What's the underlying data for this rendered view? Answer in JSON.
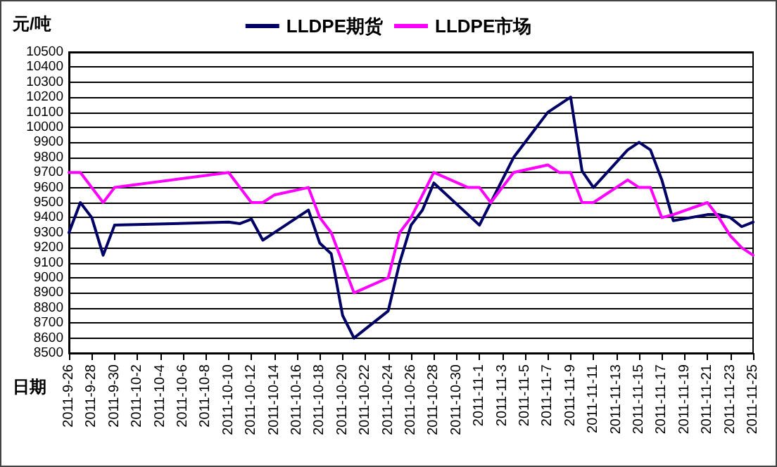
{
  "chart_data": {
    "type": "line",
    "ylabel": "元/吨",
    "xlabel": "日期",
    "x": [
      "2011-09-26",
      "2011-09-27",
      "2011-09-28",
      "2011-09-29",
      "2011-09-30",
      "2011-10-10",
      "2011-10-11",
      "2011-10-12",
      "2011-10-13",
      "2011-10-14",
      "2011-10-17",
      "2011-10-18",
      "2011-10-19",
      "2011-10-20",
      "2011-10-21",
      "2011-10-24",
      "2011-10-25",
      "2011-10-26",
      "2011-10-27",
      "2011-10-28",
      "2011-10-31",
      "2011-11-01",
      "2011-11-02",
      "2011-11-03",
      "2011-11-04",
      "2011-11-07",
      "2011-11-08",
      "2011-11-09",
      "2011-11-10",
      "2011-11-11",
      "2011-11-14",
      "2011-11-15",
      "2011-11-16",
      "2011-11-17",
      "2011-11-18",
      "2011-11-21",
      "2011-11-22",
      "2011-11-23",
      "2011-11-24",
      "2011-11-25"
    ],
    "series": [
      {
        "name": "LLDPE期货",
        "color": "#000066",
        "values": [
          9300,
          9500,
          9400,
          9150,
          9350,
          9370,
          9360,
          9390,
          9250,
          9300,
          9450,
          9230,
          9160,
          8750,
          8600,
          8780,
          9100,
          9350,
          9450,
          9630,
          9420,
          9350,
          9500,
          9650,
          9800,
          10100,
          10150,
          10200,
          9710,
          9600,
          9850,
          9900,
          9850,
          9650,
          9380,
          9420,
          9420,
          9400,
          9340,
          9370
        ]
      },
      {
        "name": "LLDPE市场",
        "color": "#ff00ff",
        "values": [
          9700,
          9700,
          9600,
          9500,
          9600,
          9700,
          9600,
          9500,
          9500,
          9550,
          9600,
          9400,
          9300,
          9100,
          8900,
          9000,
          9300,
          9400,
          9550,
          9700,
          9600,
          9600,
          9500,
          9600,
          9700,
          9750,
          9700,
          9700,
          9500,
          9500,
          9650,
          9600,
          9600,
          9400,
          9420,
          9500,
          9400,
          9280,
          9200,
          9150
        ]
      }
    ],
    "xlim": [
      "2011-09-26",
      "2011-11-25"
    ],
    "xticks": [
      {
        "value": "2011-09-26",
        "label": "2011-9-26"
      },
      {
        "value": "2011-09-28",
        "label": "2011-9-28"
      },
      {
        "value": "2011-09-30",
        "label": "2011-9-30"
      },
      {
        "value": "2011-10-02",
        "label": "2011-10-2"
      },
      {
        "value": "2011-10-04",
        "label": "2011-10-4"
      },
      {
        "value": "2011-10-06",
        "label": "2011-10-6"
      },
      {
        "value": "2011-10-08",
        "label": "2011-10-8"
      },
      {
        "value": "2011-10-10",
        "label": "2011-10-10"
      },
      {
        "value": "2011-10-12",
        "label": "2011-10-12"
      },
      {
        "value": "2011-10-14",
        "label": "2011-10-14"
      },
      {
        "value": "2011-10-16",
        "label": "2011-10-16"
      },
      {
        "value": "2011-10-18",
        "label": "2011-10-18"
      },
      {
        "value": "2011-10-20",
        "label": "2011-10-20"
      },
      {
        "value": "2011-10-22",
        "label": "2011-10-22"
      },
      {
        "value": "2011-10-24",
        "label": "2011-10-24"
      },
      {
        "value": "2011-10-26",
        "label": "2011-10-26"
      },
      {
        "value": "2011-10-28",
        "label": "2011-10-28"
      },
      {
        "value": "2011-10-30",
        "label": "2011-10-30"
      },
      {
        "value": "2011-11-01",
        "label": "2011-11-1"
      },
      {
        "value": "2011-11-03",
        "label": "2011-11-3"
      },
      {
        "value": "2011-11-05",
        "label": "2011-11-5"
      },
      {
        "value": "2011-11-07",
        "label": "2011-11-7"
      },
      {
        "value": "2011-11-09",
        "label": "2011-11-9"
      },
      {
        "value": "2011-11-11",
        "label": "2011-11-11"
      },
      {
        "value": "2011-11-13",
        "label": "2011-11-13"
      },
      {
        "value": "2011-11-15",
        "label": "2011-11-15"
      },
      {
        "value": "2011-11-17",
        "label": "2011-11-17"
      },
      {
        "value": "2011-11-19",
        "label": "2011-11-19"
      },
      {
        "value": "2011-11-21",
        "label": "2011-11-21"
      },
      {
        "value": "2011-11-23",
        "label": "2011-11-23"
      },
      {
        "value": "2011-11-25",
        "label": "2011-11-25"
      }
    ],
    "ylim": [
      8500,
      10500
    ],
    "yticks": [
      8500,
      8600,
      8700,
      8800,
      8900,
      9000,
      9100,
      9200,
      9300,
      9400,
      9500,
      9600,
      9700,
      9800,
      9900,
      10000,
      10100,
      10200,
      10300,
      10400,
      10500
    ],
    "grid": "y",
    "legend": "top",
    "marker": "none",
    "line_style": "solid"
  }
}
